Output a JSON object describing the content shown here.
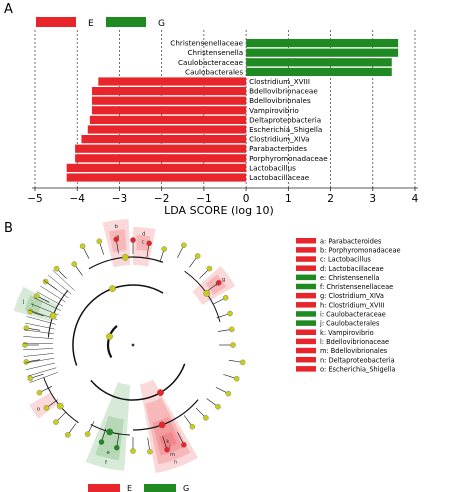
{
  "panel_a_letter": "A",
  "panel_b_letter": "B",
  "colors": {
    "E": "#e8252b",
    "G": "#1f8a21",
    "node": "#c9cc1e",
    "branch": "#111111"
  },
  "legend_top": [
    {
      "label": "E",
      "color": "#e8252b"
    },
    {
      "label": "G",
      "color": "#1f8a21"
    }
  ],
  "legend_bottom": [
    {
      "label": "E",
      "color": "#e8252b"
    },
    {
      "label": "G",
      "color": "#1f8a21"
    }
  ],
  "chart_data": [
    {
      "type": "bar",
      "orientation": "horizontal",
      "xlabel": "LDA SCORE (log 10)",
      "xlim": [
        -5,
        4
      ],
      "xticks": [
        "−5",
        "−4",
        "−3",
        "−2",
        "−1",
        "0",
        "1",
        "2",
        "3",
        "4"
      ],
      "grid": "vertical dashed",
      "legend_placement": "top-left",
      "bars": [
        {
          "label": "Christensenellaceae",
          "value": 3.6,
          "group": "G"
        },
        {
          "label": "Christensenella",
          "value": 3.6,
          "group": "G"
        },
        {
          "label": "Caulobacteraceae",
          "value": 3.45,
          "group": "G"
        },
        {
          "label": "Caulobacterales",
          "value": 3.45,
          "group": "G"
        },
        {
          "label": "Clostridium_XVIII",
          "value": -3.5,
          "group": "E"
        },
        {
          "label": "Bdellovibrionaceae",
          "value": -3.65,
          "group": "E"
        },
        {
          "label": "Bdellovibrionales",
          "value": -3.65,
          "group": "E"
        },
        {
          "label": "Vampirovibrio",
          "value": -3.65,
          "group": "E"
        },
        {
          "label": "Deltaproteobacteria",
          "value": -3.7,
          "group": "E"
        },
        {
          "label": "Escherichia_Shigella",
          "value": -3.75,
          "group": "E"
        },
        {
          "label": "Clostridium_XIVa",
          "value": -3.9,
          "group": "E"
        },
        {
          "label": "Parabacteroides",
          "value": -4.05,
          "group": "E"
        },
        {
          "label": "Porphyromonadaceae",
          "value": -4.05,
          "group": "E"
        },
        {
          "label": "Lactobacillus",
          "value": -4.25,
          "group": "E"
        },
        {
          "label": "Lactobacillaceae",
          "value": -4.25,
          "group": "E"
        }
      ]
    },
    {
      "type": "cladogram",
      "legend": [
        {
          "text": "a: Parabacteroides",
          "group": "E"
        },
        {
          "text": "b: Porphyromonadaceae",
          "group": "E"
        },
        {
          "text": "c: Lactobacillus",
          "group": "E"
        },
        {
          "text": "d: Lactobacillaceae",
          "group": "E"
        },
        {
          "text": "e: Christensenella",
          "group": "G"
        },
        {
          "text": "f: Christensenellaceae",
          "group": "G"
        },
        {
          "text": "g: Clostridium_XIVa",
          "group": "E"
        },
        {
          "text": "h: Clostridium_XVIII",
          "group": "E"
        },
        {
          "text": "i: Caulobacteraceae",
          "group": "G"
        },
        {
          "text": "j: Caulobacterales",
          "group": "G"
        },
        {
          "text": "k: Vampirovibrio",
          "group": "E"
        },
        {
          "text": "l: Bdellovibrionaceae",
          "group": "E"
        },
        {
          "text": "m: Bdellovibrionales",
          "group": "E"
        },
        {
          "text": "n: Deltaproteobacteria",
          "group": "E"
        },
        {
          "text": "o: Escherichia_Shigella",
          "group": "E"
        }
      ],
      "sector_letters": [
        {
          "letter": "a",
          "group": "E"
        },
        {
          "letter": "b",
          "group": "E"
        },
        {
          "letter": "c",
          "group": "E"
        },
        {
          "letter": "d",
          "group": "E"
        },
        {
          "letter": "e",
          "group": "G"
        },
        {
          "letter": "f",
          "group": "G"
        },
        {
          "letter": "g",
          "group": "E"
        },
        {
          "letter": "h",
          "group": "E"
        },
        {
          "letter": "i",
          "group": "G"
        },
        {
          "letter": "j",
          "group": "G"
        },
        {
          "letter": "k",
          "group": "E"
        },
        {
          "letter": "l",
          "group": "E"
        },
        {
          "letter": "m",
          "group": "E"
        },
        {
          "letter": "n",
          "group": "E"
        },
        {
          "letter": "o",
          "group": "E"
        }
      ]
    }
  ]
}
